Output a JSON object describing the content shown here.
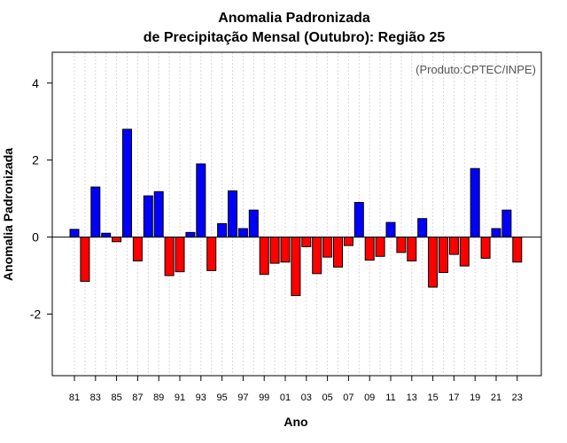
{
  "chart_data": {
    "type": "bar",
    "title_line1": "Anomalia Padronizada",
    "title_line2": "de Precipitação Mensal (Outubro): Região 25",
    "xlabel": "Ano",
    "ylabel": "Anomalia Padronizada",
    "credit": "(Produto:CPTEC/INPE)",
    "ylim": [
      -3.6,
      4.8
    ],
    "yticks": [
      -2,
      0,
      2,
      4
    ],
    "ytick_labels": [
      "-2",
      "0",
      "2",
      "4"
    ],
    "categories": [
      "81",
      "82",
      "83",
      "84",
      "85",
      "86",
      "87",
      "88",
      "89",
      "90",
      "91",
      "92",
      "93",
      "94",
      "95",
      "96",
      "97",
      "98",
      "99",
      "00",
      "01",
      "02",
      "03",
      "04",
      "05",
      "06",
      "07",
      "08",
      "09",
      "10",
      "11",
      "12",
      "13",
      "14",
      "15",
      "16",
      "17",
      "18",
      "19",
      "20",
      "21",
      "22",
      "23"
    ],
    "xtick_labels": [
      "81",
      "83",
      "85",
      "87",
      "89",
      "91",
      "93",
      "95",
      "97",
      "99",
      "01",
      "03",
      "05",
      "07",
      "09",
      "11",
      "13",
      "15",
      "17",
      "19",
      "21",
      "23"
    ],
    "values": [
      0.2,
      -1.15,
      1.3,
      0.1,
      -0.12,
      2.8,
      -0.62,
      1.07,
      1.18,
      -1.0,
      -0.9,
      0.12,
      1.9,
      -0.87,
      0.35,
      1.2,
      0.22,
      0.7,
      -0.97,
      -0.68,
      -0.65,
      -1.52,
      -0.25,
      -0.95,
      -0.52,
      -0.78,
      -0.22,
      0.9,
      -0.6,
      -0.5,
      0.38,
      -0.4,
      -0.62,
      0.48,
      -1.3,
      -0.92,
      -0.45,
      -0.75,
      1.78,
      -0.55,
      0.22,
      0.7,
      -0.65
    ],
    "positive_color": "#0000ff",
    "negative_color": "#ff0000",
    "grid": true
  }
}
